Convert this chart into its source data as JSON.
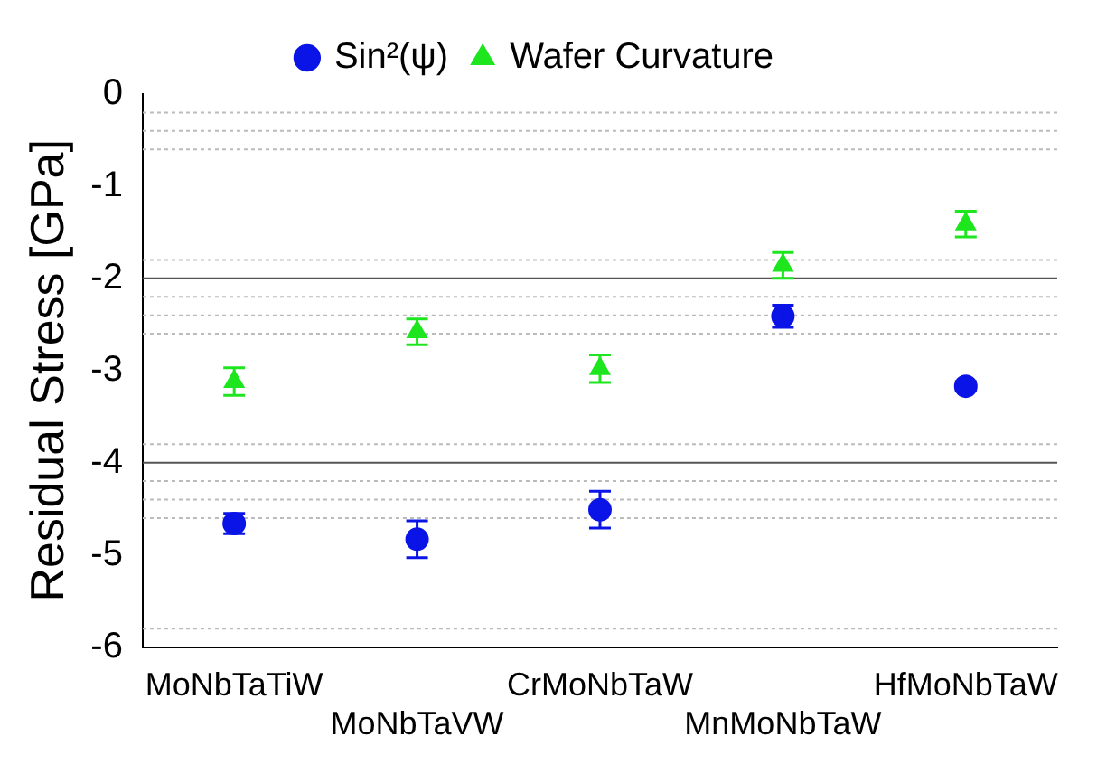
{
  "chart_data": {
    "type": "scatter",
    "ylabel": "Residual Stress [GPa]",
    "categories": [
      "MoNbTaTiW",
      "MoNbTaVW",
      "CrMoNbTaW",
      "MnMoNbTaW",
      "HfMoNbTaW"
    ],
    "series": [
      {
        "name": "Sin²(ψ)",
        "color": "#0a14e6",
        "marker": "circle",
        "values": [
          -4.66,
          -4.83,
          -4.51,
          -2.41,
          -3.17
        ],
        "errors": [
          0.11,
          0.2,
          0.2,
          0.12,
          0.05
        ]
      },
      {
        "name": "Wafer Curvature",
        "color": "#1ee61e",
        "marker": "triangle",
        "values": [
          -3.12,
          -2.58,
          -2.98,
          -1.86,
          -1.41
        ],
        "errors": [
          0.15,
          0.14,
          0.15,
          0.14,
          0.14
        ]
      }
    ],
    "ylim": [
      -6,
      0
    ],
    "yticks": [
      0,
      -1,
      -2,
      -3,
      -4,
      -5,
      -6
    ],
    "ref_lines": [
      {
        "axis": "y",
        "value": -0.2,
        "line_style": "dotted"
      },
      {
        "axis": "y",
        "value": -0.4,
        "line_style": "dotted"
      },
      {
        "axis": "y",
        "value": -0.6,
        "line_style": "dotted"
      },
      {
        "axis": "y",
        "value": -1.8,
        "line_style": "dotted"
      },
      {
        "axis": "y",
        "value": -2,
        "line_style": "solid"
      },
      {
        "axis": "y",
        "value": -2.2,
        "line_style": "dotted"
      },
      {
        "axis": "y",
        "value": -2.4,
        "line_style": "dotted"
      },
      {
        "axis": "y",
        "value": -2.6,
        "line_style": "dotted"
      },
      {
        "axis": "y",
        "value": -3.8,
        "line_style": "dotted"
      },
      {
        "axis": "y",
        "value": -4,
        "line_style": "solid"
      },
      {
        "axis": "y",
        "value": -4.2,
        "line_style": "dotted"
      },
      {
        "axis": "y",
        "value": -4.4,
        "line_style": "dotted"
      },
      {
        "axis": "y",
        "value": -4.6,
        "line_style": "dotted"
      },
      {
        "axis": "y",
        "value": -5.8,
        "line_style": "dotted"
      }
    ],
    "legend": "top",
    "grid": false
  }
}
